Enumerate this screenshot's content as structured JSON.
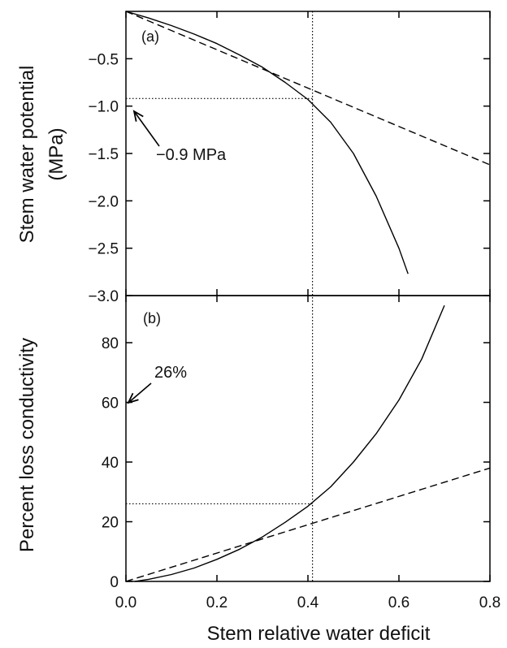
{
  "chart_data": [
    {
      "type": "line",
      "panel_label": "(a)",
      "ylabel_line1": "Stem water potential",
      "ylabel_line2": "(MPa)",
      "xlim": [
        0.0,
        0.8
      ],
      "ylim": [
        -3.0,
        0.0
      ],
      "yticks": [
        "-0.5",
        "-1.0",
        "-1.5",
        "-2.0",
        "-2.5",
        "-3.0"
      ],
      "yticks_display": [
        "−0.5",
        "−1.0",
        "−1.5",
        "−2.0",
        "−2.5",
        "−3.0"
      ],
      "yticks_values": [
        -0.5,
        -1.0,
        -1.5,
        -2.0,
        -2.5,
        -3.0
      ],
      "series": [
        {
          "style": "solid",
          "x": [
            0.0,
            0.05,
            0.1,
            0.15,
            0.2,
            0.25,
            0.3,
            0.35,
            0.4,
            0.45,
            0.5,
            0.55,
            0.6,
            0.62
          ],
          "y": [
            0.0,
            -0.07,
            -0.15,
            -0.24,
            -0.34,
            -0.46,
            -0.59,
            -0.75,
            -0.93,
            -1.17,
            -1.5,
            -1.95,
            -2.5,
            -2.77
          ]
        },
        {
          "style": "dashed",
          "x": [
            0.0,
            0.8
          ],
          "y": [
            0.0,
            -1.62
          ]
        }
      ],
      "reference": {
        "x": 0.41,
        "y": -0.92
      },
      "annotation": {
        "text": "−0.9 MPa"
      }
    },
    {
      "type": "line",
      "panel_label": "(b)",
      "ylabel": "Percent loss conductivity",
      "xlabel": "Stem relative water deficit",
      "xlim": [
        0.0,
        0.8
      ],
      "ylim": [
        0,
        95
      ],
      "xticks": [
        "0.0",
        "0.2",
        "0.4",
        "0.6",
        "0.8"
      ],
      "xticks_values": [
        0.0,
        0.2,
        0.4,
        0.6,
        0.8
      ],
      "yticks": [
        "0",
        "20",
        "40",
        "60",
        "80"
      ],
      "yticks_values": [
        0,
        20,
        40,
        60,
        80
      ],
      "series": [
        {
          "style": "solid",
          "x": [
            0.02,
            0.05,
            0.1,
            0.15,
            0.2,
            0.25,
            0.3,
            0.35,
            0.4,
            0.45,
            0.5,
            0.55,
            0.6,
            0.65,
            0.7
          ],
          "y": [
            0.0,
            0.7,
            2.3,
            4.5,
            7.4,
            10.8,
            14.9,
            19.8,
            25.2,
            31.7,
            40.0,
            49.5,
            60.8,
            74.5,
            92.5
          ]
        },
        {
          "style": "dashed",
          "x": [
            0.0,
            0.8
          ],
          "y": [
            0.0,
            38.0
          ]
        }
      ],
      "reference": {
        "x": 0.41,
        "y": 26
      },
      "annotation": {
        "text": "26%"
      }
    }
  ]
}
